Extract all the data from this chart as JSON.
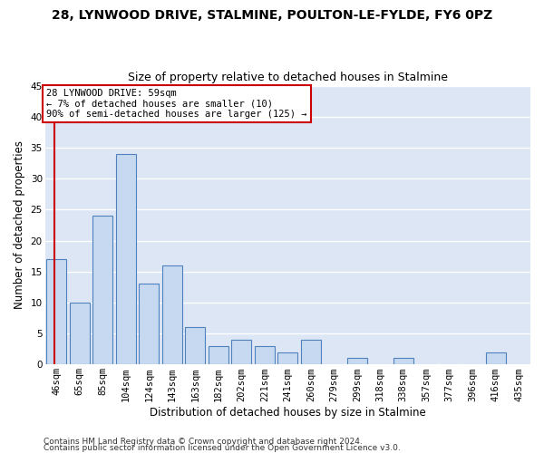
{
  "title1": "28, LYNWOOD DRIVE, STALMINE, POULTON-LE-FYLDE, FY6 0PZ",
  "title2": "Size of property relative to detached houses in Stalmine",
  "xlabel": "Distribution of detached houses by size in Stalmine",
  "ylabel": "Number of detached properties",
  "categories": [
    "46sqm",
    "65sqm",
    "85sqm",
    "104sqm",
    "124sqm",
    "143sqm",
    "163sqm",
    "182sqm",
    "202sqm",
    "221sqm",
    "241sqm",
    "260sqm",
    "279sqm",
    "299sqm",
    "318sqm",
    "338sqm",
    "357sqm",
    "377sqm",
    "396sqm",
    "416sqm",
    "435sqm"
  ],
  "values": [
    17,
    10,
    24,
    34,
    13,
    16,
    6,
    3,
    4,
    3,
    2,
    4,
    0,
    1,
    0,
    1,
    0,
    0,
    0,
    2,
    0
  ],
  "bar_color": "#c6d9f0",
  "bar_edge_color": "#4f81bd",
  "bg_color": "#dce6f5",
  "grid_color": "#ffffff",
  "annotation_box_text": "28 LYNWOOD DRIVE: 59sqm\n← 7% of detached houses are smaller (10)\n90% of semi-detached houses are larger (125) →",
  "annotation_box_color": "#ffffff",
  "annotation_box_edge": "#cc0000",
  "marker_line_color": "#cc0000",
  "ylim": [
    0,
    45
  ],
  "yticks": [
    0,
    5,
    10,
    15,
    20,
    25,
    30,
    35,
    40,
    45
  ],
  "footer1": "Contains HM Land Registry data © Crown copyright and database right 2024.",
  "footer2": "Contains public sector information licensed under the Open Government Licence v3.0.",
  "title1_fontsize": 10,
  "title2_fontsize": 9,
  "tick_fontsize": 7.5,
  "ylabel_fontsize": 8.5,
  "xlabel_fontsize": 8.5,
  "footer_fontsize": 6.5
}
